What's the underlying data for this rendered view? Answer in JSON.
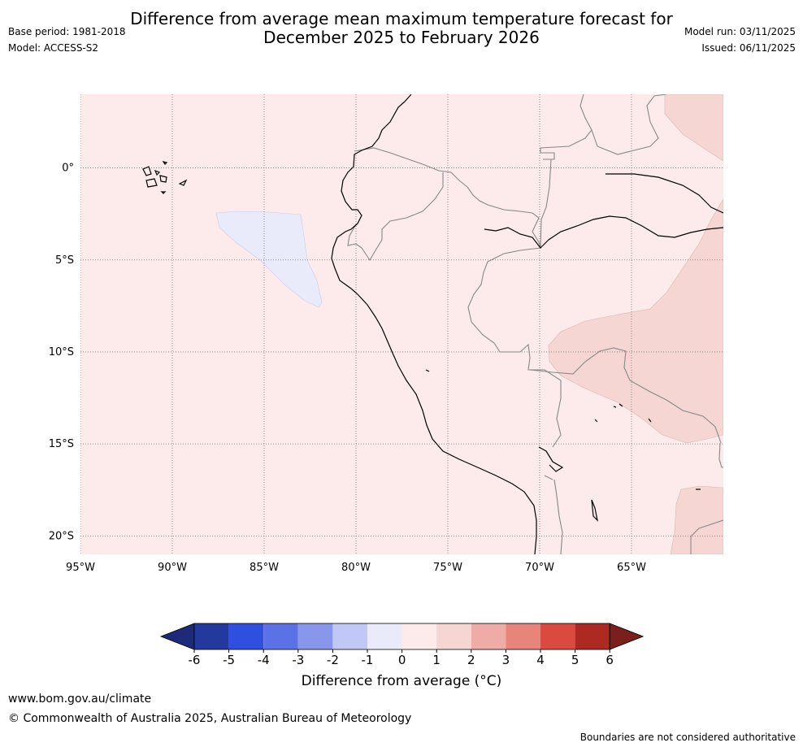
{
  "title": {
    "line1": "Difference from average mean maximum temperature forecast for",
    "line2": "December 2025 to February 2026"
  },
  "meta_left": {
    "base_period": "Base period: 1981-2018",
    "model": "Model: ACCESS-S2"
  },
  "meta_right": {
    "model_run": "Model run: 03/11/2025",
    "issued": "Issued: 06/11/2025"
  },
  "map": {
    "lat_labels": [
      "0°",
      "5°S",
      "10°S",
      "15°S",
      "20°S"
    ],
    "lat_values": [
      0,
      -5,
      -10,
      -15,
      -20
    ],
    "lon_labels": [
      "95°W",
      "90°W",
      "85°W",
      "80°W",
      "75°W",
      "70°W",
      "65°W"
    ],
    "lon_values": [
      -95,
      -90,
      -85,
      -80,
      -75,
      -70,
      -65
    ],
    "lon_range": [
      -95,
      -60
    ],
    "lat_range": [
      -21,
      4
    ]
  },
  "legend": {
    "ticks": [
      "-6",
      "-5",
      "-4",
      "-3",
      "-2",
      "-1",
      "0",
      "1",
      "2",
      "3",
      "4",
      "5",
      "6"
    ],
    "colors": [
      "#24399e",
      "#2f4fe0",
      "#5a72e6",
      "#8896ec",
      "#c2c8f5",
      "#e9ebfb",
      "#fcebea",
      "#f5d6d3",
      "#efaca6",
      "#e8857b",
      "#db4a3e",
      "#ad2a22"
    ],
    "under_color": "#1d2a7a",
    "over_color": "#7a1f1b",
    "label": "Difference from average (°C)"
  },
  "footer": {
    "url": "www.bom.gov.au/climate",
    "copyright": "© Commonwealth of Australia 2025, Australian Bureau of Meteorology",
    "disclaimer": "Boundaries are not considered authoritative"
  }
}
